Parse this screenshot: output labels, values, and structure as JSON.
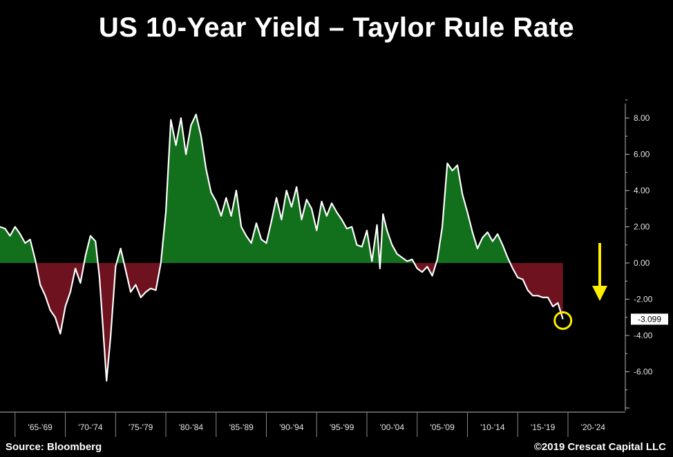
{
  "title": "US 10-Year Yield – Taylor Rule Rate",
  "source": "Source: Bloomberg",
  "copyright": "©2019 Crescat Capital LLC",
  "colors": {
    "background": "#000000",
    "line": "#ffffff",
    "positive_fill": "#12701d",
    "negative_fill": "#6e1220",
    "annotation": "#ffee00"
  },
  "chart_data": {
    "type": "area",
    "ylim": [
      -8,
      9
    ],
    "y_ticks": [
      8,
      6,
      4,
      2,
      0,
      -2,
      -4,
      -6
    ],
    "y_tick_labels": [
      "8.00",
      "6.00",
      "4.00",
      "2.00",
      "0.00",
      "-2.00",
      "-4.00",
      "-6.00"
    ],
    "x_domain": [
      1963.5,
      2025.5
    ],
    "x_period_labels": [
      "'65-'69",
      "'70-'74",
      "'75-'79",
      "'80-'84",
      "'85-'89",
      "'90-'94",
      "'95-'99",
      "'00-'04",
      "'05-'09",
      "'10-'14",
      "'15-'19",
      "'20-'24"
    ],
    "x_period_starts": [
      1965,
      1970,
      1975,
      1980,
      1985,
      1990,
      1995,
      2000,
      2005,
      2010,
      2015,
      2020
    ],
    "last_value": -3.099,
    "last_value_label": "-3.099",
    "legend": "none",
    "grid": false,
    "series": [
      {
        "x": [
          1963.5,
          1964.0,
          1964.5,
          1965.0,
          1965.5,
          1966.0,
          1966.5,
          1967.0,
          1967.5,
          1968.0,
          1968.5,
          1969.0,
          1969.5,
          1970.0,
          1970.5,
          1971.0,
          1971.5,
          1972.0,
          1972.5,
          1973.0,
          1973.4,
          1973.8,
          1974.1,
          1974.5,
          1975.0,
          1975.5,
          1976.0,
          1976.5,
          1977.0,
          1977.5,
          1978.0,
          1978.5,
          1979.0,
          1979.5,
          1980.0,
          1980.5,
          1981.0,
          1981.5,
          1982.0,
          1982.5,
          1983.0,
          1983.5,
          1984.0,
          1984.5,
          1985.0,
          1985.5,
          1986.0,
          1986.5,
          1987.0,
          1987.5,
          1988.0,
          1988.5,
          1989.0,
          1989.5,
          1990.0,
          1990.5,
          1991.0,
          1991.5,
          1992.0,
          1992.5,
          1993.0,
          1993.5,
          1994.0,
          1994.5,
          1995.0,
          1995.5,
          1996.0,
          1996.5,
          1997.0,
          1997.5,
          1998.0,
          1998.5,
          1999.0,
          1999.5,
          2000.0,
          2000.5,
          2001.0,
          2001.3,
          2001.6,
          2002.0,
          2002.5,
          2003.0,
          2003.5,
          2004.0,
          2004.5,
          2005.0,
          2005.5,
          2006.0,
          2006.5,
          2007.0,
          2007.5,
          2008.0,
          2008.5,
          2009.0,
          2009.5,
          2010.0,
          2010.5,
          2011.0,
          2011.5,
          2012.0,
          2012.5,
          2013.0,
          2013.5,
          2014.0,
          2014.5,
          2015.0,
          2015.5,
          2016.0,
          2016.5,
          2017.0,
          2017.5,
          2018.0,
          2018.5,
          2019.0,
          2019.5
        ],
        "y": [
          2.0,
          1.9,
          1.5,
          2.0,
          1.6,
          1.1,
          1.3,
          0.2,
          -1.2,
          -1.8,
          -2.6,
          -3.0,
          -3.9,
          -2.4,
          -1.6,
          -0.3,
          -1.1,
          0.4,
          1.5,
          1.2,
          -0.8,
          -4.0,
          -6.5,
          -4.1,
          -0.2,
          0.8,
          -0.4,
          -1.6,
          -1.2,
          -1.9,
          -1.6,
          -1.4,
          -1.5,
          0.0,
          2.8,
          7.9,
          6.5,
          8.0,
          6.0,
          7.6,
          8.2,
          7.0,
          5.2,
          3.9,
          3.4,
          2.6,
          3.6,
          2.6,
          4.0,
          2.0,
          1.5,
          1.1,
          2.2,
          1.3,
          1.1,
          2.3,
          3.6,
          2.4,
          4.0,
          3.1,
          4.2,
          2.4,
          3.5,
          3.0,
          1.8,
          3.4,
          2.6,
          3.3,
          2.8,
          2.4,
          1.9,
          2.0,
          1.0,
          0.9,
          1.8,
          0.1,
          2.1,
          -0.3,
          2.7,
          1.8,
          1.0,
          0.5,
          0.3,
          0.1,
          0.2,
          -0.3,
          -0.5,
          -0.2,
          -0.7,
          0.2,
          2.0,
          5.5,
          5.1,
          5.4,
          3.8,
          2.8,
          1.7,
          0.8,
          1.4,
          1.7,
          1.2,
          1.6,
          1.0,
          0.3,
          -0.3,
          -0.8,
          -0.9,
          -1.5,
          -1.8,
          -1.8,
          -1.9,
          -1.9,
          -2.4,
          -2.2,
          -3.1
        ]
      }
    ]
  }
}
